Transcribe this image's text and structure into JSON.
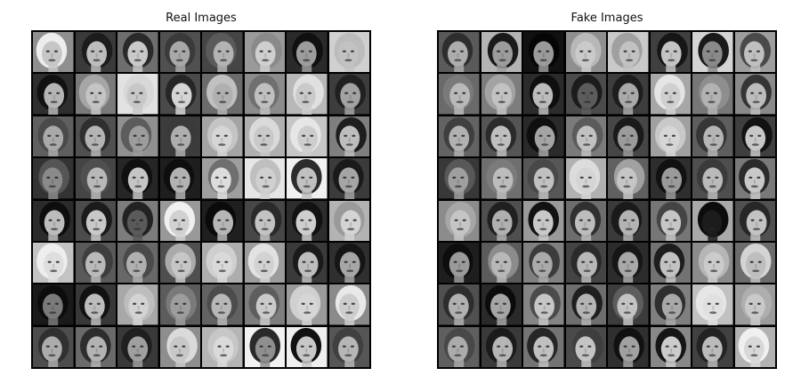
{
  "panels": [
    {
      "id": "real",
      "title": "Real Images",
      "cells": [
        {
          "bg": "#8f8f8f",
          "skin": "#c6c6c6",
          "hair": "#ededed"
        },
        {
          "bg": "#3a3a3a",
          "skin": "#bdbdbd",
          "hair": "#1c1c1c"
        },
        {
          "bg": "#6e6e6e",
          "skin": "#c9c9c9",
          "hair": "#2a2a2a"
        },
        {
          "bg": "#505050",
          "skin": "#a8a8a8",
          "hair": "#3a3a3a"
        },
        {
          "bg": "#454545",
          "skin": "#b3b3b3",
          "hair": "#5a5a5a"
        },
        {
          "bg": "#9a9a9a",
          "skin": "#cfcfcf",
          "hair": "#8a8a8a"
        },
        {
          "bg": "#2a2a2a",
          "skin": "#9c9c9c",
          "hair": "#101010"
        },
        {
          "bg": "#d0d0d0",
          "skin": "#c2c2c2",
          "hair": "#bcbcbc"
        },
        {
          "bg": "#2e2e2e",
          "skin": "#b5b5b5",
          "hair": "#111111"
        },
        {
          "bg": "#7a7a7a",
          "skin": "#c4c4c4",
          "hair": "#a6a6a6"
        },
        {
          "bg": "#e2e2e2",
          "skin": "#c8c8c8",
          "hair": "#d8d8d8"
        },
        {
          "bg": "#4a4a4a",
          "skin": "#d5d5d5",
          "hair": "#262626"
        },
        {
          "bg": "#6b6b6b",
          "skin": "#b0b0b0",
          "hair": "#c0c0c0"
        },
        {
          "bg": "#8c8c8c",
          "skin": "#c0c0c0",
          "hair": "#707070"
        },
        {
          "bg": "#b8b8b8",
          "skin": "#cacaca",
          "hair": "#e0e0e0"
        },
        {
          "bg": "#3d3d3d",
          "skin": "#a2a2a2",
          "hair": "#202020"
        },
        {
          "bg": "#5f5f5f",
          "skin": "#a9a9a9",
          "hair": "#4a4a4a"
        },
        {
          "bg": "#505050",
          "skin": "#b4b4b4",
          "hair": "#2f2f2f"
        },
        {
          "bg": "#909090",
          "skin": "#9c9c9c",
          "hair": "#5c5c5c"
        },
        {
          "bg": "#3c3c3c",
          "skin": "#aeaeae",
          "hair": "#3a3a3a"
        },
        {
          "bg": "#a4a4a4",
          "skin": "#d6d6d6",
          "hair": "#c4c4c4"
        },
        {
          "bg": "#b0b0b0",
          "skin": "#c9c9c9",
          "hair": "#dadada"
        },
        {
          "bg": "#c6c6c6",
          "skin": "#cdcdcd",
          "hair": "#e6e6e6"
        },
        {
          "bg": "#7f7f7f",
          "skin": "#bdbdbd",
          "hair": "#1e1e1e"
        },
        {
          "bg": "#333333",
          "skin": "#8a8a8a",
          "hair": "#555555"
        },
        {
          "bg": "#454545",
          "skin": "#b8b8b8",
          "hair": "#4f4f4f"
        },
        {
          "bg": "#262626",
          "skin": "#c5c5c5",
          "hair": "#101010"
        },
        {
          "bg": "#1e1e1e",
          "skin": "#b2b2b2",
          "hair": "#0e0e0e"
        },
        {
          "bg": "#9e9e9e",
          "skin": "#dddddd",
          "hair": "#6f6f6f"
        },
        {
          "bg": "#e6e6e6",
          "skin": "#d0d0d0",
          "hair": "#bfbfbf"
        },
        {
          "bg": "#f0f0f0",
          "skin": "#c0c0c0",
          "hair": "#2c2c2c"
        },
        {
          "bg": "#3b3b3b",
          "skin": "#a5a5a5",
          "hair": "#1a1a1a"
        },
        {
          "bg": "#2b2b2b",
          "skin": "#bcbcbc",
          "hair": "#0d0d0d"
        },
        {
          "bg": "#4c4c4c",
          "skin": "#c8c8c8",
          "hair": "#1b1b1b"
        },
        {
          "bg": "#7c7c7c",
          "skin": "#5a5a5a",
          "hair": "#222222"
        },
        {
          "bg": "#999999",
          "skin": "#d1d1d1",
          "hair": "#f0f0f0"
        },
        {
          "bg": "#1f1f1f",
          "skin": "#b6b6b6",
          "hair": "#0a0a0a"
        },
        {
          "bg": "#474747",
          "skin": "#c3c3c3",
          "hair": "#2a2a2a"
        },
        {
          "bg": "#2d2d2d",
          "skin": "#cecece",
          "hair": "#121212"
        },
        {
          "bg": "#b3b3b3",
          "skin": "#d4d4d4",
          "hair": "#9a9a9a"
        },
        {
          "bg": "#c3c3c3",
          "skin": "#dedede",
          "hair": "#eeeeee"
        },
        {
          "bg": "#5a5a5a",
          "skin": "#b9b9b9",
          "hair": "#3e3e3e"
        },
        {
          "bg": "#686868",
          "skin": "#b0b0b0",
          "hair": "#4a4a4a"
        },
        {
          "bg": "#4f4f4f",
          "skin": "#c6c6c6",
          "hair": "#aaaaaa"
        },
        {
          "bg": "#adadad",
          "skin": "#d9d9d9",
          "hair": "#cfcfcf"
        },
        {
          "bg": "#9c9c9c",
          "skin": "#d2d2d2",
          "hair": "#e2e2e2"
        },
        {
          "bg": "#3a3a3a",
          "skin": "#bebebe",
          "hair": "#1a1a1a"
        },
        {
          "bg": "#2f2f2f",
          "skin": "#a6a6a6",
          "hair": "#151515"
        },
        {
          "bg": "#1a1a1a",
          "skin": "#7a7a7a",
          "hair": "#0c0c0c"
        },
        {
          "bg": "#383838",
          "skin": "#bcbcbc",
          "hair": "#111111"
        },
        {
          "bg": "#a8a8a8",
          "skin": "#d3d3d3",
          "hair": "#bdbdbd"
        },
        {
          "bg": "#5c5c5c",
          "skin": "#9d9d9d",
          "hair": "#7a7a7a"
        },
        {
          "bg": "#626262",
          "skin": "#b7b7b7",
          "hair": "#4c4c4c"
        },
        {
          "bg": "#7e7e7e",
          "skin": "#cacaca",
          "hair": "#5e5e5e"
        },
        {
          "bg": "#9b9b9b",
          "skin": "#d6d6d6",
          "hair": "#d0d0d0"
        },
        {
          "bg": "#8a8a8a",
          "skin": "#cdcdcd",
          "hair": "#e8e8e8"
        },
        {
          "bg": "#4d4d4d",
          "skin": "#acacac",
          "hair": "#303030"
        },
        {
          "bg": "#6a6a6a",
          "skin": "#b3b3b3",
          "hair": "#2d2d2d"
        },
        {
          "bg": "#393939",
          "skin": "#9f9f9f",
          "hair": "#1f1f1f"
        },
        {
          "bg": "#8e8e8e",
          "skin": "#c8c8c8",
          "hair": "#dadada"
        },
        {
          "bg": "#b5b5b5",
          "skin": "#dadada",
          "hair": "#c7c7c7"
        },
        {
          "bg": "#f2f2f2",
          "skin": "#8f8f8f",
          "hair": "#2a2a2a"
        },
        {
          "bg": "#efefef",
          "skin": "#c7c7c7",
          "hair": "#111111"
        },
        {
          "bg": "#565656",
          "skin": "#b6b6b6",
          "hair": "#404040"
        }
      ]
    },
    {
      "id": "fake",
      "title": "Fake Images",
      "cells": [
        {
          "bg": "#5a5a5a",
          "skin": "#adadad",
          "hair": "#2e2e2e"
        },
        {
          "bg": "#b4b4b4",
          "skin": "#9c9c9c",
          "hair": "#1a1a1a"
        },
        {
          "bg": "#111111",
          "skin": "#9a9a9a",
          "hair": "#050505"
        },
        {
          "bg": "#8f8f8f",
          "skin": "#cacaca",
          "hair": "#b8b8b8"
        },
        {
          "bg": "#c9c9c9",
          "skin": "#c2c2c2",
          "hair": "#a0a0a0"
        },
        {
          "bg": "#404040",
          "skin": "#c4c4c4",
          "hair": "#161616"
        },
        {
          "bg": "#d4d4d4",
          "skin": "#8a8a8a",
          "hair": "#1a1a1a"
        },
        {
          "bg": "#9e9e9e",
          "skin": "#c0c0c0",
          "hair": "#4a4a4a"
        },
        {
          "bg": "#6a6a6a",
          "skin": "#b9b9b9",
          "hair": "#7a7a7a"
        },
        {
          "bg": "#7d7d7d",
          "skin": "#c2c2c2",
          "hair": "#a3a3a3"
        },
        {
          "bg": "#2b2b2b",
          "skin": "#bbbbbb",
          "hair": "#0e0e0e"
        },
        {
          "bg": "#4b4b4b",
          "skin": "#5c5c5c",
          "hair": "#1c1c1c"
        },
        {
          "bg": "#3d3d3d",
          "skin": "#a9a9a9",
          "hair": "#1d1d1d"
        },
        {
          "bg": "#a7a7a7",
          "skin": "#d0d0d0",
          "hair": "#e5e5e5"
        },
        {
          "bg": "#777777",
          "skin": "#b2b2b2",
          "hair": "#8e8e8e"
        },
        {
          "bg": "#8a8a8a",
          "skin": "#bcbcbc",
          "hair": "#353535"
        },
        {
          "bg": "#636363",
          "skin": "#b1b1b1",
          "hair": "#3f3f3f"
        },
        {
          "bg": "#555555",
          "skin": "#bfbfbf",
          "hair": "#2b2b2b"
        },
        {
          "bg": "#2a2a2a",
          "skin": "#a4a4a4",
          "hair": "#0f0f0f"
        },
        {
          "bg": "#7b7b7b",
          "skin": "#c1c1c1",
          "hair": "#5b5b5b"
        },
        {
          "bg": "#464646",
          "skin": "#9b9b9b",
          "hair": "#1a1a1a"
        },
        {
          "bg": "#a0a0a0",
          "skin": "#d6d6d6",
          "hair": "#c9c9c9"
        },
        {
          "bg": "#5e5e5e",
          "skin": "#b5b5b5",
          "hair": "#363636"
        },
        {
          "bg": "#3f3f3f",
          "skin": "#c7c7c7",
          "hair": "#121212"
        },
        {
          "bg": "#383838",
          "skin": "#9f9f9f",
          "hair": "#585858"
        },
        {
          "bg": "#6f6f6f",
          "skin": "#bcbcbc",
          "hair": "#7b7b7b"
        },
        {
          "bg": "#575757",
          "skin": "#c0c0c0",
          "hair": "#484848"
        },
        {
          "bg": "#b1b1b1",
          "skin": "#d4d4d4",
          "hair": "#dcdcdc"
        },
        {
          "bg": "#606060",
          "skin": "#c5c5c5",
          "hair": "#a1a1a1"
        },
        {
          "bg": "#2e2e2e",
          "skin": "#9a9a9a",
          "hair": "#111111"
        },
        {
          "bg": "#4e4e4e",
          "skin": "#bababa",
          "hair": "#3a3a3a"
        },
        {
          "bg": "#7a7a7a",
          "skin": "#c8c8c8",
          "hair": "#2b2b2b"
        },
        {
          "bg": "#8c8c8c",
          "skin": "#c5c5c5",
          "hair": "#a7a7a7"
        },
        {
          "bg": "#4f4f4f",
          "skin": "#b0b0b0",
          "hair": "#202020"
        },
        {
          "bg": "#9a9a9a",
          "skin": "#c8c8c8",
          "hair": "#121212"
        },
        {
          "bg": "#6d6d6d",
          "skin": "#bdbdbd",
          "hair": "#303030"
        },
        {
          "bg": "#3a3a3a",
          "skin": "#b3b3b3",
          "hair": "#1a1a1a"
        },
        {
          "bg": "#767676",
          "skin": "#c6c6c6",
          "hair": "#444444"
        },
        {
          "bg": "#aaaaaa",
          "skin": "#1c1c1c",
          "hair": "#0c0c0c"
        },
        {
          "bg": "#515151",
          "skin": "#c3c3c3",
          "hair": "#272727"
        },
        {
          "bg": "#1e1e1e",
          "skin": "#9a9a9a",
          "hair": "#0d0d0d"
        },
        {
          "bg": "#5b5b5b",
          "skin": "#b8b8b8",
          "hair": "#8c8c8c"
        },
        {
          "bg": "#808080",
          "skin": "#aaaaaa",
          "hair": "#3c3c3c"
        },
        {
          "bg": "#444444",
          "skin": "#b7b7b7",
          "hair": "#2a2a2a"
        },
        {
          "bg": "#2c2c2c",
          "skin": "#a8a8a8",
          "hair": "#161616"
        },
        {
          "bg": "#727272",
          "skin": "#c2c2c2",
          "hair": "#1d1d1d"
        },
        {
          "bg": "#8b8b8b",
          "skin": "#cbcbcb",
          "hair": "#b6b6b6"
        },
        {
          "bg": "#6c6c6c",
          "skin": "#bebebe",
          "hair": "#d4d4d4"
        },
        {
          "bg": "#505050",
          "skin": "#b0b0b0",
          "hair": "#2d2d2d"
        },
        {
          "bg": "#2a2a2a",
          "skin": "#a5a5a5",
          "hair": "#0b0b0b"
        },
        {
          "bg": "#858585",
          "skin": "#c6c6c6",
          "hair": "#4b4b4b"
        },
        {
          "bg": "#6e6e6e",
          "skin": "#b4b4b4",
          "hair": "#1f1f1f"
        },
        {
          "bg": "#3c3c3c",
          "skin": "#c3c3c3",
          "hair": "#5d5d5d"
        },
        {
          "bg": "#7f7f7f",
          "skin": "#a8a8a8",
          "hair": "#2f2f2f"
        },
        {
          "bg": "#c1c1c1",
          "skin": "#e0e0e0",
          "hair": "#e6e6e6"
        },
        {
          "bg": "#9c9c9c",
          "skin": "#c9c9c9",
          "hair": "#aeaeae"
        },
        {
          "bg": "#5f5f5f",
          "skin": "#ababab",
          "hair": "#484848"
        },
        {
          "bg": "#3a3a3a",
          "skin": "#b6b6b6",
          "hair": "#1b1b1b"
        },
        {
          "bg": "#747474",
          "skin": "#c0c0c0",
          "hair": "#262626"
        },
        {
          "bg": "#4a4a4a",
          "skin": "#c4c4c4",
          "hair": "#3e3e3e"
        },
        {
          "bg": "#2f2f2f",
          "skin": "#a1a1a1",
          "hair": "#111111"
        },
        {
          "bg": "#888888",
          "skin": "#cbcbcb",
          "hair": "#151515"
        },
        {
          "bg": "#414141",
          "skin": "#bbbbbb",
          "hair": "#232323"
        },
        {
          "bg": "#b2b2b2",
          "skin": "#d8d8d8",
          "hair": "#f0f0f0"
        }
      ]
    }
  ]
}
